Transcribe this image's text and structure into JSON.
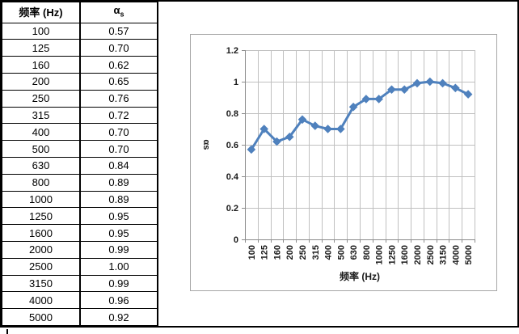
{
  "table": {
    "header": {
      "frequency": "频率 (Hz)",
      "alpha_main": "α",
      "alpha_sub": "s"
    },
    "rows": [
      [
        "100",
        "0.57"
      ],
      [
        "125",
        "0.70"
      ],
      [
        "160",
        "0.62"
      ],
      [
        "200",
        "0.65"
      ],
      [
        "250",
        "0.76"
      ],
      [
        "315",
        "0.72"
      ],
      [
        "400",
        "0.70"
      ],
      [
        "500",
        "0.70"
      ],
      [
        "630",
        "0.84"
      ],
      [
        "800",
        "0.89"
      ],
      [
        "1000",
        "0.89"
      ],
      [
        "1250",
        "0.95"
      ],
      [
        "1600",
        "0.95"
      ],
      [
        "2000",
        "0.99"
      ],
      [
        "2500",
        "1.00"
      ],
      [
        "3150",
        "0.99"
      ],
      [
        "4000",
        "0.96"
      ],
      [
        "5000",
        "0.92"
      ]
    ]
  },
  "chart_data": {
    "type": "line",
    "title": "",
    "categories": [
      "100",
      "125",
      "160",
      "200",
      "250",
      "315",
      "400",
      "500",
      "630",
      "800",
      "1000",
      "1250",
      "1600",
      "2000",
      "2500",
      "3150",
      "4000",
      "5000"
    ],
    "series": [
      {
        "name": "αs",
        "values": [
          0.57,
          0.7,
          0.62,
          0.65,
          0.76,
          0.72,
          0.7,
          0.7,
          0.84,
          0.89,
          0.89,
          0.95,
          0.95,
          0.99,
          1.0,
          0.99,
          0.96,
          0.92
        ]
      }
    ],
    "xlabel": "频率 (Hz)",
    "ylabel": "αs",
    "ylim": [
      0,
      1.2
    ],
    "ytick_step": 0.2,
    "grid": true,
    "legend_position": "none",
    "marker": "diamond",
    "line_color": "#4F81BD",
    "gridline_color": "#c0c0c0",
    "axis_color": "#8c8c8c",
    "label_color": "#1a1a1a",
    "chart_border_color": "#a6a6a6"
  }
}
